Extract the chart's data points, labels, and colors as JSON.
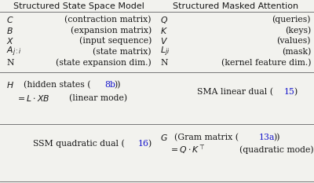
{
  "title_left": "Structured State Space Model",
  "title_right": "Structured Masked Attention",
  "bg_color": "#f2f2ee",
  "text_color": "#1a1a1a",
  "blue_color": "#1515cc",
  "left_rows": [
    {
      "sym": "C",
      "desc": "(contraction matrix)"
    },
    {
      "sym": "B",
      "desc": "(expansion matrix)"
    },
    {
      "sym": "X",
      "desc": "(input sequence)"
    },
    {
      "sym": "A_{j:i}",
      "desc": "(state matrix)"
    },
    {
      "sym": "N",
      "desc": "(state expansion dim.)"
    }
  ],
  "right_rows": [
    {
      "sym": "Q",
      "desc": "(queries)"
    },
    {
      "sym": "K",
      "desc": "(keys)"
    },
    {
      "sym": "V",
      "desc": "(values)"
    },
    {
      "sym": "L_{ji}",
      "desc": "(mask)"
    },
    {
      "sym": "N",
      "desc": "(kernel feature dim.)"
    }
  ],
  "fs": 7.8,
  "fs_title": 8.0
}
